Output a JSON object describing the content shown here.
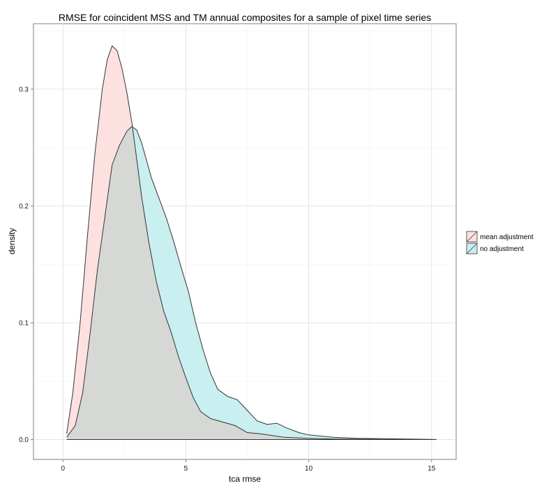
{
  "chart_data": {
    "type": "area",
    "title": "RMSE for coincident MSS and TM annual composites for a sample of pixel time series",
    "xlabel": "tca rmse",
    "ylabel": "density",
    "xlim": [
      -1.2,
      16.0
    ],
    "ylim": [
      -0.017,
      0.356
    ],
    "x_ticks": [
      0,
      5,
      10,
      15
    ],
    "x_tick_labels": [
      "0",
      "5",
      "10",
      "15"
    ],
    "y_ticks": [
      0.0,
      0.1,
      0.2,
      0.3
    ],
    "y_tick_labels": [
      "0.0",
      "0.1",
      "0.2",
      "0.3"
    ],
    "grid": true,
    "legend_position": "right",
    "series": [
      {
        "name": "mean adjustment",
        "color": "#F8766D",
        "fill": "#fde1e1",
        "points": [
          [
            0.15,
            0.005
          ],
          [
            0.4,
            0.04
          ],
          [
            0.7,
            0.1
          ],
          [
            1.0,
            0.175
          ],
          [
            1.3,
            0.245
          ],
          [
            1.6,
            0.3
          ],
          [
            1.8,
            0.325
          ],
          [
            2.0,
            0.337
          ],
          [
            2.2,
            0.333
          ],
          [
            2.4,
            0.318
          ],
          [
            2.6,
            0.297
          ],
          [
            2.8,
            0.272
          ],
          [
            3.0,
            0.24
          ],
          [
            3.2,
            0.208
          ],
          [
            3.5,
            0.168
          ],
          [
            3.8,
            0.135
          ],
          [
            4.1,
            0.11
          ],
          [
            4.4,
            0.092
          ],
          [
            4.7,
            0.071
          ],
          [
            5.0,
            0.053
          ],
          [
            5.3,
            0.036
          ],
          [
            5.6,
            0.024
          ],
          [
            6.0,
            0.018
          ],
          [
            6.5,
            0.015
          ],
          [
            7.0,
            0.012
          ],
          [
            7.5,
            0.006
          ],
          [
            8.0,
            0.005
          ],
          [
            9.0,
            0.002
          ],
          [
            10.0,
            0.001
          ],
          [
            11.0,
            0.0005
          ],
          [
            12.0,
            0.0003
          ],
          [
            13.0,
            0.0002
          ],
          [
            13.9,
            0.0
          ]
        ]
      },
      {
        "name": "no adjustment",
        "color": "#00BFC4",
        "fill": "#c9eff0",
        "points": [
          [
            0.15,
            0.002
          ],
          [
            0.5,
            0.012
          ],
          [
            0.8,
            0.04
          ],
          [
            1.1,
            0.09
          ],
          [
            1.4,
            0.145
          ],
          [
            1.7,
            0.19
          ],
          [
            2.0,
            0.235
          ],
          [
            2.3,
            0.252
          ],
          [
            2.6,
            0.264
          ],
          [
            2.8,
            0.268
          ],
          [
            3.0,
            0.265
          ],
          [
            3.2,
            0.254
          ],
          [
            3.4,
            0.239
          ],
          [
            3.6,
            0.224
          ],
          [
            3.9,
            0.207
          ],
          [
            4.2,
            0.19
          ],
          [
            4.5,
            0.17
          ],
          [
            4.8,
            0.148
          ],
          [
            5.1,
            0.127
          ],
          [
            5.4,
            0.1
          ],
          [
            5.7,
            0.077
          ],
          [
            6.0,
            0.057
          ],
          [
            6.3,
            0.043
          ],
          [
            6.7,
            0.037
          ],
          [
            7.1,
            0.034
          ],
          [
            7.5,
            0.025
          ],
          [
            7.9,
            0.016
          ],
          [
            8.3,
            0.013
          ],
          [
            8.7,
            0.014
          ],
          [
            9.1,
            0.01
          ],
          [
            9.6,
            0.006
          ],
          [
            10.0,
            0.004
          ],
          [
            10.5,
            0.003
          ],
          [
            11.0,
            0.002
          ],
          [
            12.0,
            0.001
          ],
          [
            13.0,
            0.0008
          ],
          [
            14.0,
            0.0004
          ],
          [
            15.0,
            0.0002
          ],
          [
            15.2,
            0.0
          ]
        ]
      }
    ]
  }
}
